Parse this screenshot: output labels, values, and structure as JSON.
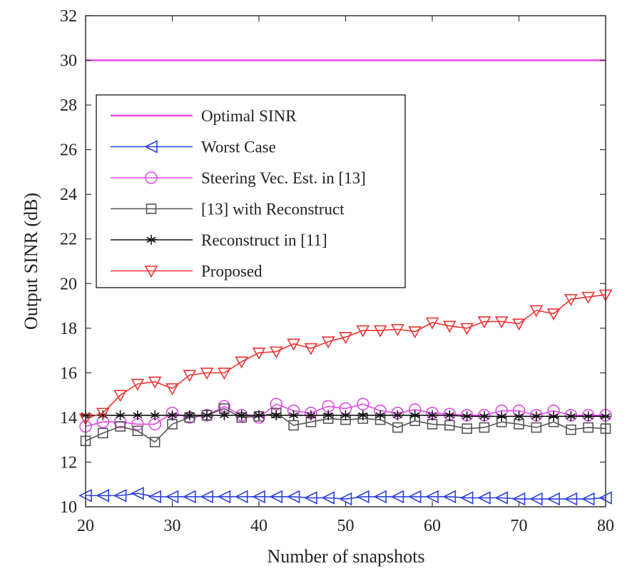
{
  "chart_data": {
    "type": "line",
    "title": "",
    "xlabel": "Number of snapshots",
    "ylabel": "Output SINR (dB)",
    "xlim": [
      20,
      80
    ],
    "ylim": [
      10,
      32
    ],
    "xticks": [
      20,
      30,
      40,
      50,
      60,
      70,
      80
    ],
    "yticks": [
      10,
      12,
      14,
      16,
      18,
      20,
      22,
      24,
      26,
      28,
      30,
      32
    ],
    "grid": false,
    "legend_position": "upper-left",
    "x": [
      20,
      22,
      24,
      26,
      28,
      30,
      32,
      34,
      36,
      38,
      40,
      42,
      44,
      46,
      48,
      50,
      52,
      54,
      56,
      58,
      60,
      62,
      64,
      66,
      68,
      70,
      72,
      74,
      76,
      78,
      80
    ],
    "series": [
      {
        "name": "Optimal SINR",
        "color": "#e14ae6",
        "marker": "none",
        "values": [
          30,
          30,
          30,
          30,
          30,
          30,
          30,
          30,
          30,
          30,
          30,
          30,
          30,
          30,
          30,
          30,
          30,
          30,
          30,
          30,
          30,
          30,
          30,
          30,
          30,
          30,
          30,
          30,
          30,
          30,
          30
        ]
      },
      {
        "name": "Worst Case",
        "color": "#2b3fe0",
        "marker": "triangle-left",
        "values": [
          10.5,
          10.5,
          10.5,
          10.6,
          10.45,
          10.45,
          10.45,
          10.45,
          10.45,
          10.45,
          10.45,
          10.45,
          10.45,
          10.4,
          10.4,
          10.35,
          10.45,
          10.45,
          10.45,
          10.45,
          10.45,
          10.45,
          10.4,
          10.4,
          10.4,
          10.35,
          10.35,
          10.35,
          10.35,
          10.35,
          10.4
        ]
      },
      {
        "name": "Steering Vec. Est. in [13]",
        "color": "#e14ae6",
        "marker": "circle",
        "values": [
          13.6,
          13.8,
          13.8,
          13.7,
          13.7,
          14.2,
          14.0,
          14.1,
          14.5,
          14.1,
          14.0,
          14.6,
          14.3,
          14.2,
          14.5,
          14.4,
          14.6,
          14.3,
          14.2,
          14.35,
          14.2,
          14.15,
          14.1,
          14.1,
          14.3,
          14.3,
          14.1,
          14.3,
          14.1,
          14.1,
          14.1
        ]
      },
      {
        "name": "[13] with Reconstruct",
        "color": "#555555",
        "marker": "square",
        "values": [
          12.95,
          13.3,
          13.6,
          13.4,
          12.9,
          13.7,
          14.0,
          14.1,
          14.4,
          14.0,
          14.05,
          14.2,
          13.65,
          13.8,
          13.95,
          13.9,
          13.95,
          13.9,
          13.55,
          13.85,
          13.7,
          13.65,
          13.5,
          13.55,
          13.8,
          13.7,
          13.55,
          13.8,
          13.45,
          13.55,
          13.5
        ]
      },
      {
        "name": "Reconstruct in [11]",
        "color": "#111111",
        "marker": "asterisk",
        "values": [
          14.1,
          14.1,
          14.1,
          14.1,
          14.1,
          14.1,
          14.1,
          14.1,
          14.1,
          14.1,
          14.1,
          14.1,
          14.1,
          14.1,
          14.1,
          14.1,
          14.1,
          14.1,
          14.1,
          14.1,
          14.1,
          14.1,
          14.05,
          14.05,
          14.05,
          14.05,
          14.05,
          14.05,
          14.05,
          14.05,
          14.05
        ]
      },
      {
        "name": "Proposed",
        "color": "#ee3333",
        "marker": "triangle-down",
        "values": [
          13.95,
          14.2,
          15.0,
          15.5,
          15.6,
          15.3,
          15.9,
          16.0,
          16.0,
          16.5,
          16.9,
          16.95,
          17.3,
          17.1,
          17.4,
          17.6,
          17.9,
          17.9,
          17.95,
          17.85,
          18.25,
          18.1,
          18.0,
          18.3,
          18.3,
          18.2,
          18.8,
          18.65,
          19.3,
          19.4,
          19.5
        ]
      }
    ]
  }
}
